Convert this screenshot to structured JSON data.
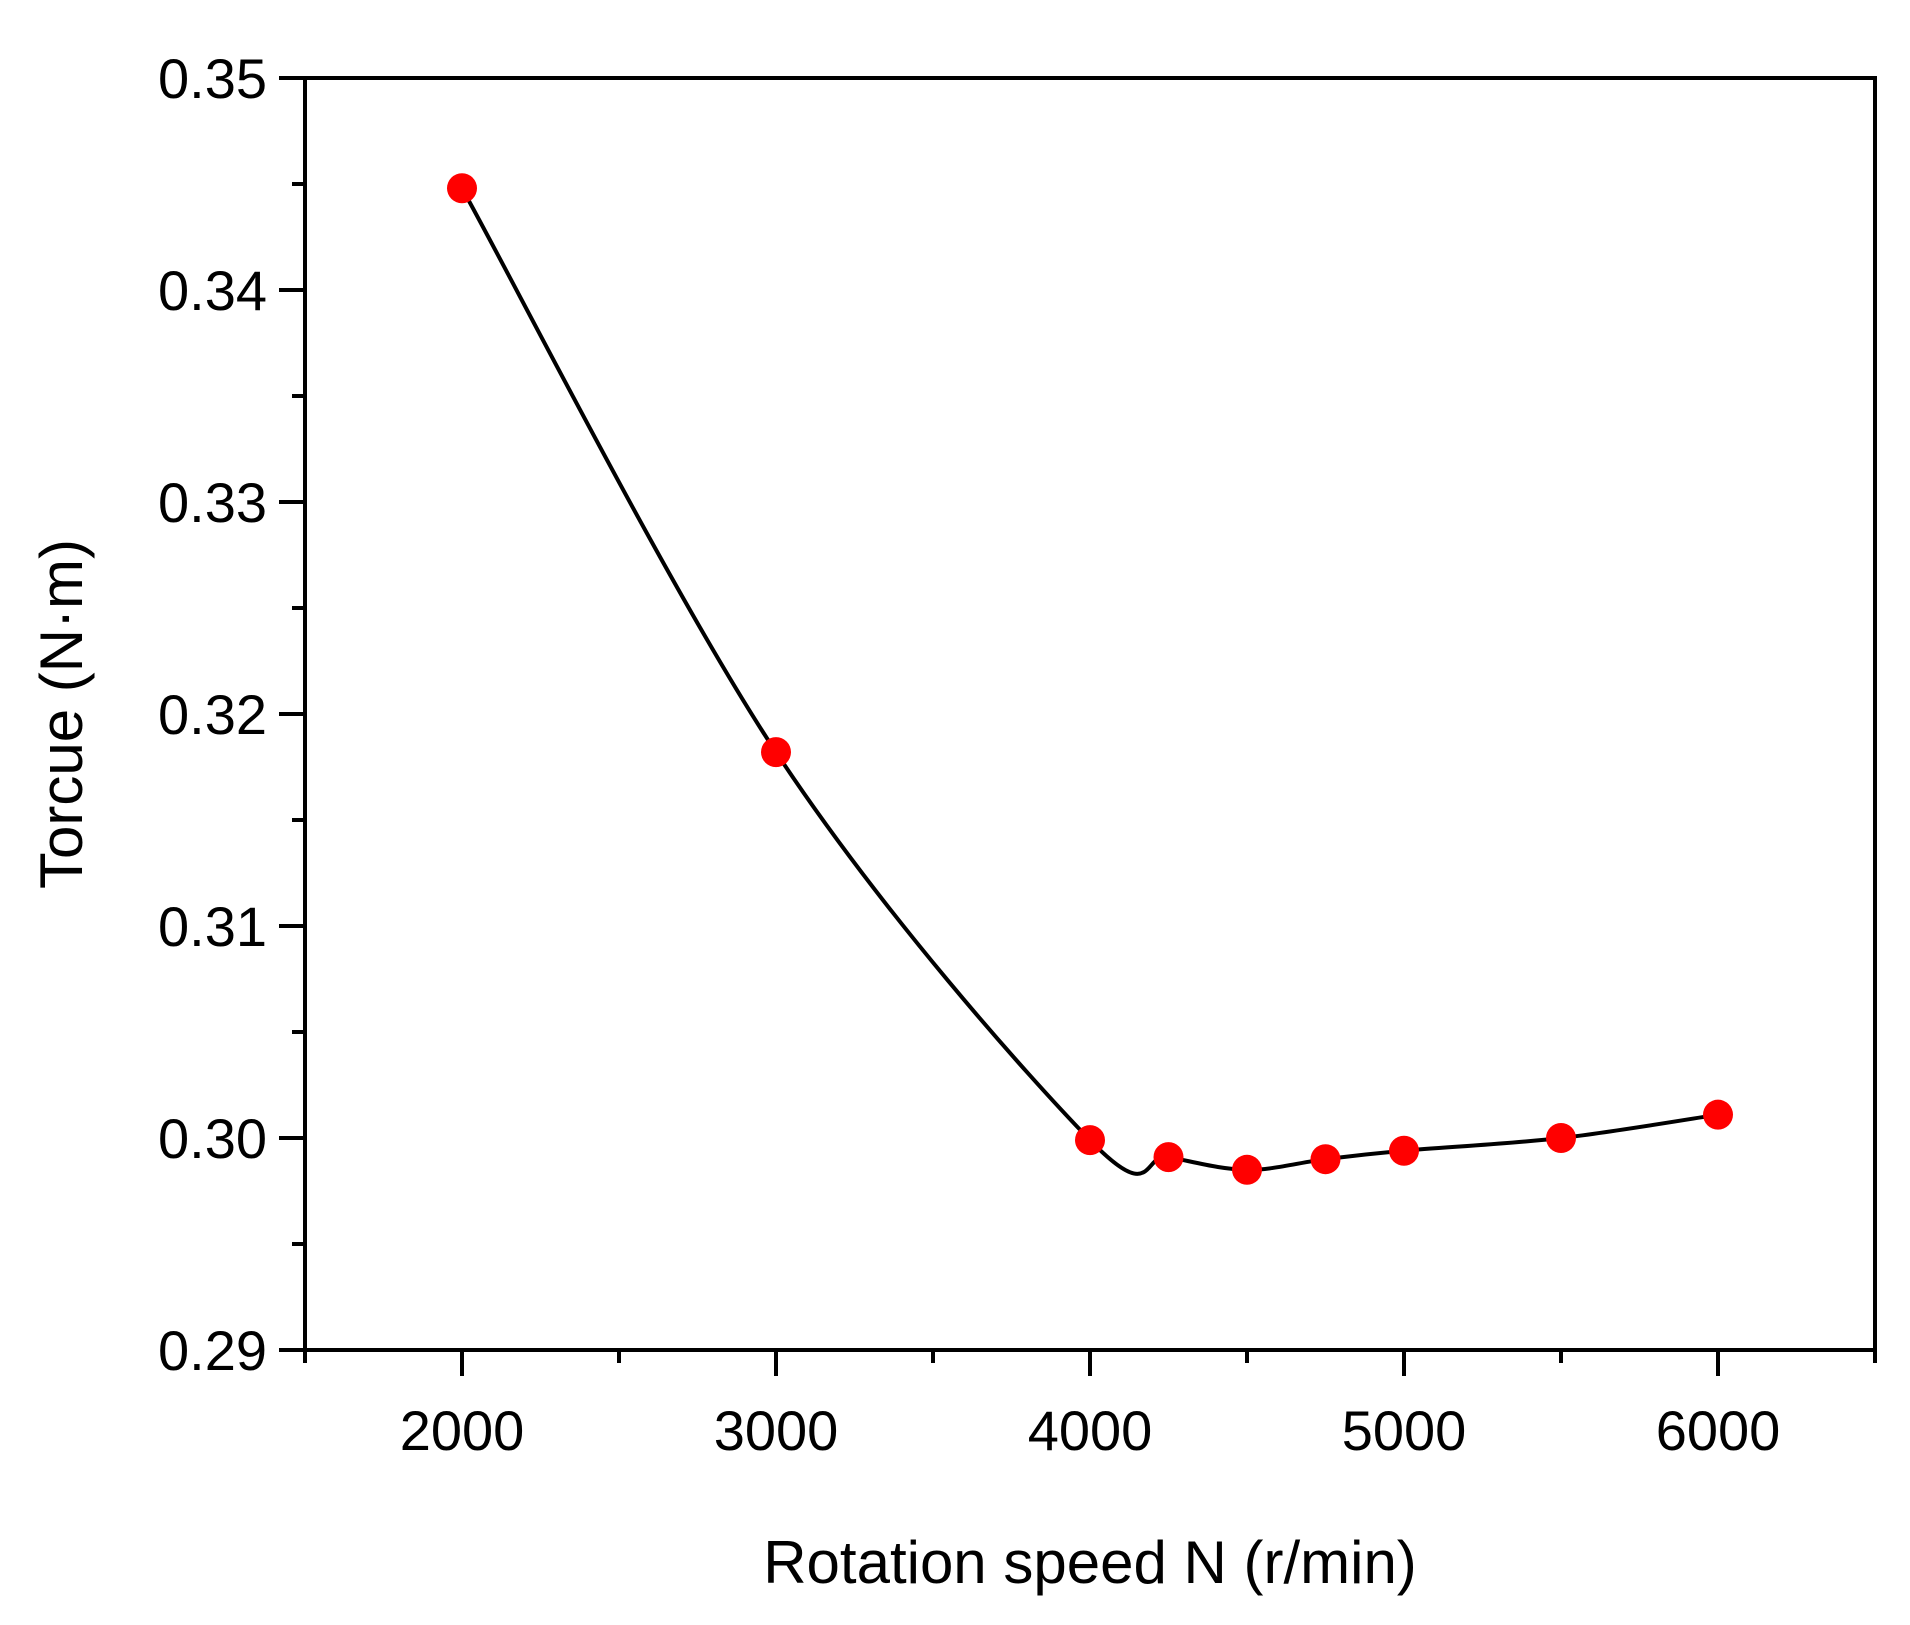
{
  "chart_data": {
    "type": "line",
    "title": "",
    "xlabel": "Rotation speed N (r/min)",
    "ylabel": "Torcue (N·m)",
    "xlim": [
      1500,
      6500
    ],
    "ylim": [
      0.29,
      0.35
    ],
    "x_ticks": [
      2000,
      3000,
      4000,
      5000,
      6000
    ],
    "x_tick_labels": [
      "2000",
      "3000",
      "4000",
      "5000",
      "6000"
    ],
    "y_ticks": [
      0.29,
      0.3,
      0.31,
      0.32,
      0.33,
      0.34,
      0.35
    ],
    "y_tick_labels": [
      "0.29",
      "0.30",
      "0.31",
      "0.32",
      "0.33",
      "0.34",
      "0.35"
    ],
    "grid": false,
    "legend": "none",
    "series": [
      {
        "x": [
          2000,
          3000,
          4000,
          4250,
          4500,
          4750,
          5000,
          5500,
          6000
        ],
        "y": [
          0.3448,
          0.3182,
          0.2999,
          0.2991,
          0.2985,
          0.299,
          0.2994,
          0.3,
          0.3011
        ],
        "marker_color": "#ff0000",
        "line_color": "#000000",
        "smooth": true
      }
    ]
  }
}
